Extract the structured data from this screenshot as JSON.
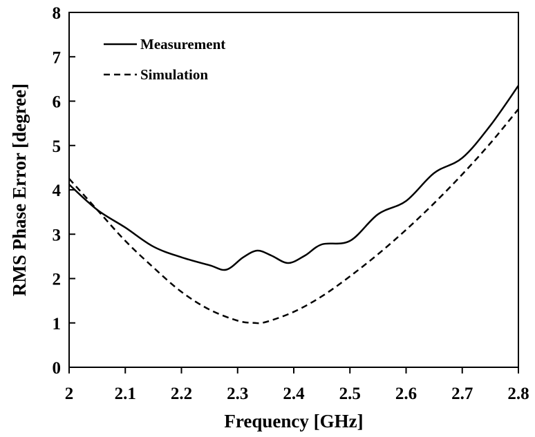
{
  "chart_data": {
    "type": "line",
    "title": "",
    "xlabel": "Frequency [GHz]",
    "ylabel": "RMS Phase Error [degree]",
    "xlim": [
      2,
      2.8
    ],
    "ylim": [
      0,
      8
    ],
    "x_ticks": [
      2,
      2.1,
      2.2,
      2.3,
      2.4,
      2.5,
      2.6,
      2.7,
      2.8
    ],
    "x_tick_labels": [
      "2",
      "2.1",
      "2.2",
      "2.3",
      "2.4",
      "2.5",
      "2.6",
      "2.7",
      "2.8"
    ],
    "y_ticks": [
      0,
      1,
      2,
      3,
      4,
      5,
      6,
      7,
      8
    ],
    "y_tick_labels": [
      "0",
      "1",
      "2",
      "3",
      "4",
      "5",
      "6",
      "7",
      "8"
    ],
    "grid": false,
    "legend_position": "top-left",
    "colors": {
      "line": "#000000",
      "background": "#ffffff"
    },
    "series": [
      {
        "name": "Measurement",
        "style": "solid",
        "x": [
          2.0,
          2.05,
          2.1,
          2.15,
          2.2,
          2.25,
          2.28,
          2.31,
          2.335,
          2.36,
          2.39,
          2.42,
          2.45,
          2.5,
          2.55,
          2.6,
          2.65,
          2.7,
          2.75,
          2.8
        ],
        "y": [
          4.12,
          3.55,
          3.15,
          2.72,
          2.48,
          2.3,
          2.2,
          2.48,
          2.63,
          2.52,
          2.35,
          2.52,
          2.77,
          2.85,
          3.45,
          3.75,
          4.38,
          4.72,
          5.45,
          6.35
        ]
      },
      {
        "name": "Simulation",
        "style": "dashed",
        "x": [
          2.0,
          2.05,
          2.1,
          2.15,
          2.2,
          2.25,
          2.3,
          2.33,
          2.35,
          2.4,
          2.45,
          2.5,
          2.55,
          2.6,
          2.65,
          2.7,
          2.75,
          2.8
        ],
        "y": [
          4.25,
          3.55,
          2.85,
          2.25,
          1.7,
          1.3,
          1.05,
          1.0,
          1.02,
          1.25,
          1.6,
          2.05,
          2.55,
          3.1,
          3.7,
          4.35,
          5.05,
          5.82
        ]
      }
    ]
  }
}
